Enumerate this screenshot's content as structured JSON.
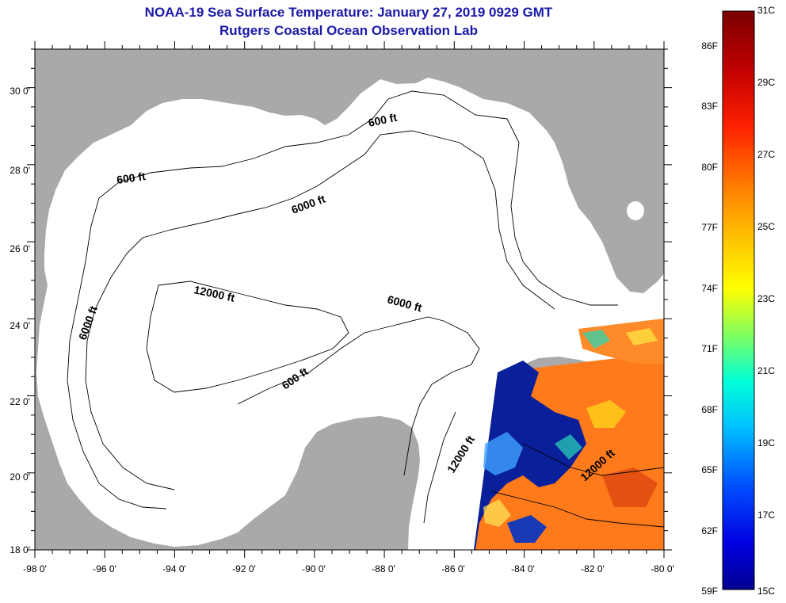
{
  "title": {
    "line1": "NOAA-19 Sea Surface Temperature:  January 27, 2019 0929 GMT",
    "line2": "Rutgers Coastal Ocean Observation Lab"
  },
  "map": {
    "lon_range": [
      -98,
      -80
    ],
    "lat_range": [
      18,
      31
    ],
    "lon_ticks": [
      "-98 0'",
      "-96 0'",
      "-94 0'",
      "-92 0'",
      "-90 0'",
      "-88 0'",
      "-86 0'",
      "-84 0'",
      "-82 0'",
      "-80 0'"
    ],
    "lat_ticks": [
      "18 0'",
      "20 0'",
      "22 0'",
      "24 0'",
      "26 0'",
      "28 0'",
      "30 0'"
    ],
    "land_color": "#a9a9a9",
    "water_color": "#ffffff",
    "contour_labels": [
      "600 ft",
      "600 ft",
      "600 ft",
      "6000 ft",
      "6000 ft",
      "6000 ft",
      "12000 ft",
      "12000 ft",
      "12000 ft"
    ]
  },
  "colorbar": {
    "celsius_labels": [
      "31C",
      "29C",
      "27C",
      "25C",
      "23C",
      "21C",
      "19C",
      "17C",
      "15C"
    ],
    "fahrenheit_labels": [
      "86F",
      "83F",
      "80F",
      "77F",
      "74F",
      "71F",
      "68F",
      "65F",
      "62F",
      "59F"
    ],
    "colors": [
      "#800000",
      "#ff0000",
      "#ff8000",
      "#ffff00",
      "#80ff80",
      "#00ffff",
      "#0080ff",
      "#0000ff",
      "#000080"
    ]
  }
}
